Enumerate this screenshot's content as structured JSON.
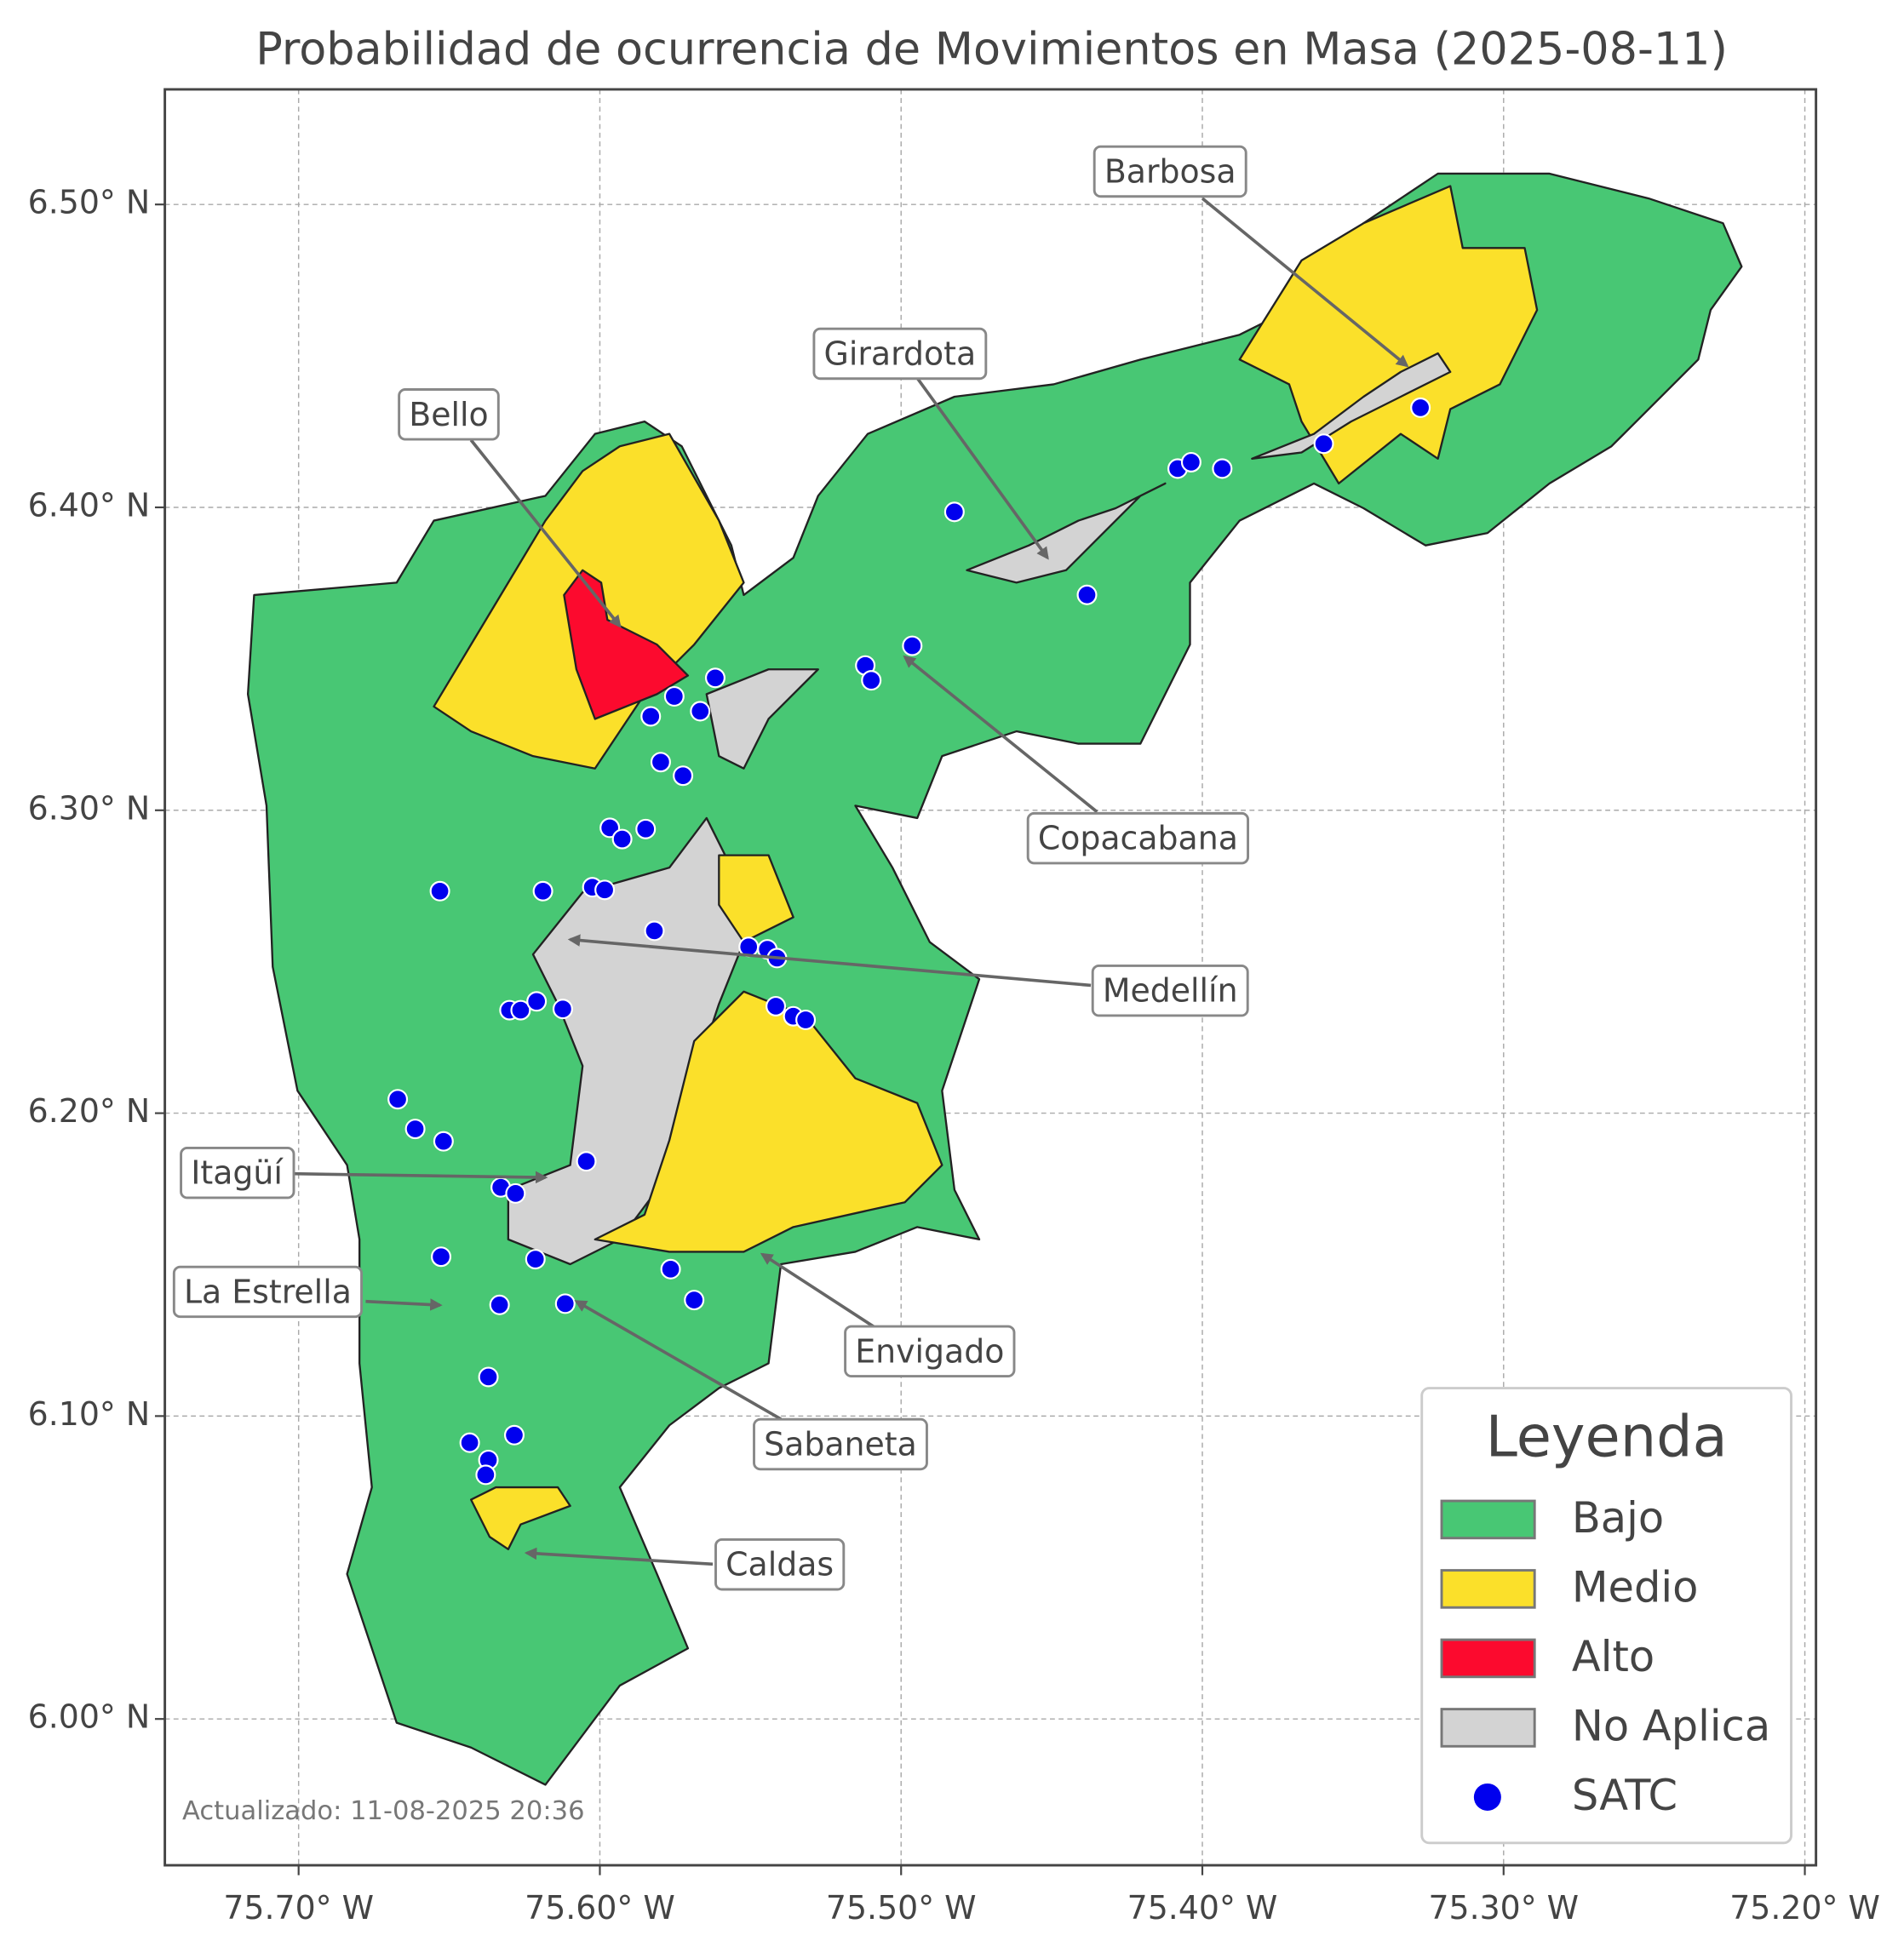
{
  "map": {
    "title": "Probabilidad de ocurrencia de Movimientos en Masa (2025-08-11)",
    "footer": "Actualizado: 11-08-2025 20:36",
    "xlim": [
      -75.7444,
      -75.1963
    ],
    "ylim": [
      5.9517,
      6.538
    ],
    "xticks": [
      {
        "value": -75.7,
        "label": "75.70° W"
      },
      {
        "value": -75.6,
        "label": "75.60° W"
      },
      {
        "value": -75.5,
        "label": "75.50° W"
      },
      {
        "value": -75.4,
        "label": "75.40° W"
      },
      {
        "value": -75.3,
        "label": "75.30° W"
      },
      {
        "value": -75.2,
        "label": "75.20° W"
      }
    ],
    "yticks": [
      {
        "value": 6.0,
        "label": "6.00° N"
      },
      {
        "value": 6.1,
        "label": "6.10° N"
      },
      {
        "value": 6.2,
        "label": "6.20° N"
      },
      {
        "value": 6.3,
        "label": "6.30° N"
      },
      {
        "value": 6.4,
        "label": "6.40° N"
      },
      {
        "value": 6.5,
        "label": "6.50° N"
      }
    ],
    "grid": true,
    "annotations": [
      "Barbosa",
      "Girardota",
      "Bello",
      "Copacabana",
      "Medellín",
      "Itagüí",
      "La Estrella",
      "Envigado",
      "Sabaneta",
      "Caldas"
    ],
    "legend": {
      "title": "Leyenda",
      "position": "lower right",
      "items": [
        {
          "label": "Bajo",
          "color": "#48c774"
        },
        {
          "label": "Medio",
          "color": "#fbe02a"
        },
        {
          "label": "Alto",
          "color": "#fc0a2e"
        },
        {
          "label": "No Aplica",
          "color": "#d3d3d3"
        },
        {
          "label": "SATC",
          "color": "#0000ee"
        }
      ]
    },
    "satc": {
      "lon": [
        -75.3276,
        -75.3597,
        -75.4082,
        -75.4037,
        -75.3934,
        -75.4823,
        -75.4383,
        -75.4963,
        -75.5119,
        -75.5099,
        -75.5617,
        -75.5753,
        -75.5667,
        -75.5831,
        -75.5798,
        -75.5724,
        -75.5967,
        -75.5926,
        -75.5848,
        -75.6531,
        -75.6189,
        -75.6025,
        -75.5984,
        -75.5819,
        -75.5506,
        -75.5444,
        -75.5412,
        -75.5416,
        -75.5358,
        -75.5317,
        -75.63,
        -75.6263,
        -75.621,
        -75.6123,
        -75.6671,
        -75.6613,
        -75.6519,
        -75.6045,
        -75.6329,
        -75.628,
        -75.6527,
        -75.6214,
        -75.5765,
        -75.5687,
        -75.6333,
        -75.6115,
        -75.637,
        -75.6432,
        -75.6284,
        -75.637,
        -75.6379
      ],
      "lat": [
        6.4329,
        6.421,
        6.4128,
        6.4149,
        6.4128,
        6.3985,
        6.3711,
        6.3543,
        6.3478,
        6.3429,
        6.3437,
        6.3376,
        6.3327,
        6.331,
        6.3159,
        6.3114,
        6.2942,
        6.2905,
        6.2938,
        6.2733,
        6.2733,
        6.2746,
        6.2737,
        6.2602,
        6.2549,
        6.2541,
        6.2512,
        6.2353,
        6.232,
        6.2308,
        6.234,
        6.234,
        6.2369,
        6.2344,
        6.2046,
        6.1948,
        6.1907,
        6.1841,
        6.1755,
        6.1735,
        6.1526,
        6.1518,
        6.1485,
        6.1383,
        6.1367,
        6.1371,
        6.1129,
        6.0912,
        6.0937,
        6.0855,
        6.0806
      ]
    }
  }
}
